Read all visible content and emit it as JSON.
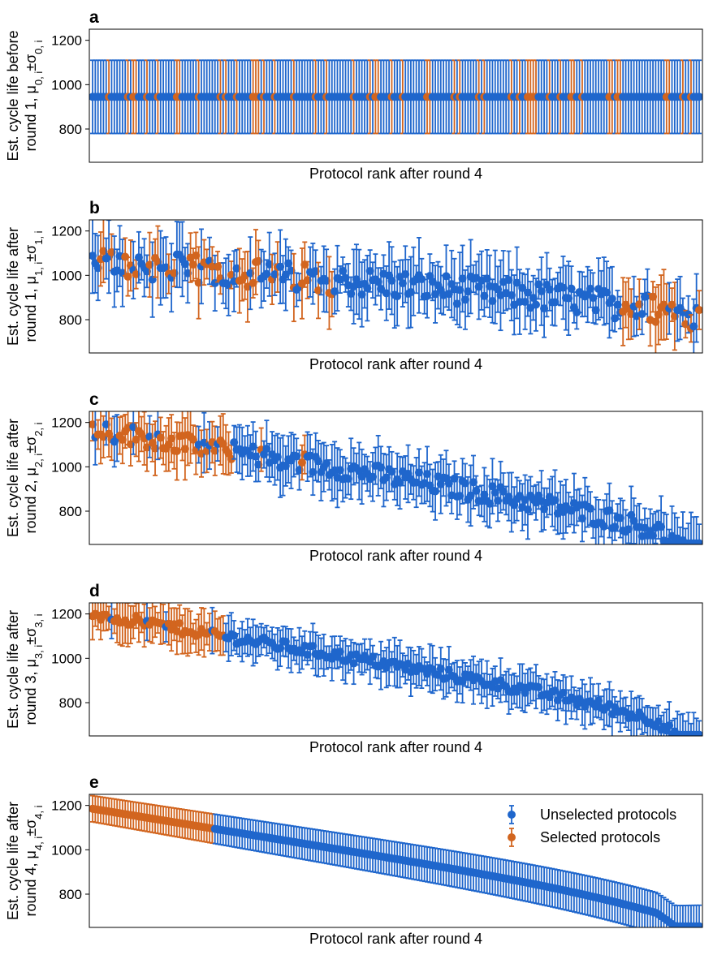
{
  "chart_data": {
    "type": "scatter",
    "n_protocols": 224,
    "x": "protocol rank after round 4 (1 = best)",
    "xlabel": "Protocol rank after round 4",
    "ylim": [
      650,
      1250
    ],
    "yticks": [
      800,
      1000,
      1200
    ],
    "grid": false,
    "legend": {
      "placement": "upper-right of panel e",
      "entries": [
        {
          "name": "Unselected protocols",
          "color": "#1f66cc"
        },
        {
          "name": "Selected protocols",
          "color": "#d2651f"
        }
      ]
    },
    "colors": {
      "unselected": "#1f66cc",
      "selected": "#d2651f"
    },
    "panels": [
      {
        "letter": "a",
        "ylabel": [
          "Est. cycle life before",
          "round 1, μ",
          "0, i",
          "±σ",
          "0, i"
        ],
        "description": "All protocols share the same prior estimate",
        "mean": 945,
        "sigma": 165
      },
      {
        "letter": "b",
        "ylabel": [
          "Est. cycle life after",
          "round 1, μ",
          "1, i",
          "±σ",
          "1, i"
        ],
        "trend_mean_start": 1060,
        "trend_mean_end": 820,
        "mean_noise": 65,
        "sigma_range": [
          60,
          170
        ]
      },
      {
        "letter": "c",
        "ylabel": [
          "Est. cycle life after",
          "round 2, μ",
          "2, i",
          "±σ",
          "2, i"
        ],
        "trend_mean_start": 1170,
        "trend_mean_end": 655,
        "mean_noise": 45,
        "sigma_range": [
          60,
          140
        ]
      },
      {
        "letter": "d",
        "ylabel": [
          "Est. cycle life after",
          "round 3, μ",
          "3, i",
          "±σ",
          "3, i"
        ],
        "trend_mean_start": 1200,
        "trend_mean_end": 655,
        "mean_noise": 25,
        "sigma_range": [
          45,
          110
        ]
      },
      {
        "letter": "e",
        "ylabel": [
          "Est. cycle life after",
          "round 4, μ",
          "4, i",
          "±σ",
          "4, i"
        ],
        "trend_mean_start": 1185,
        "trend_mean_end": 655,
        "mean_noise": 0,
        "sigma_range": [
          35,
          95
        ]
      }
    ]
  }
}
